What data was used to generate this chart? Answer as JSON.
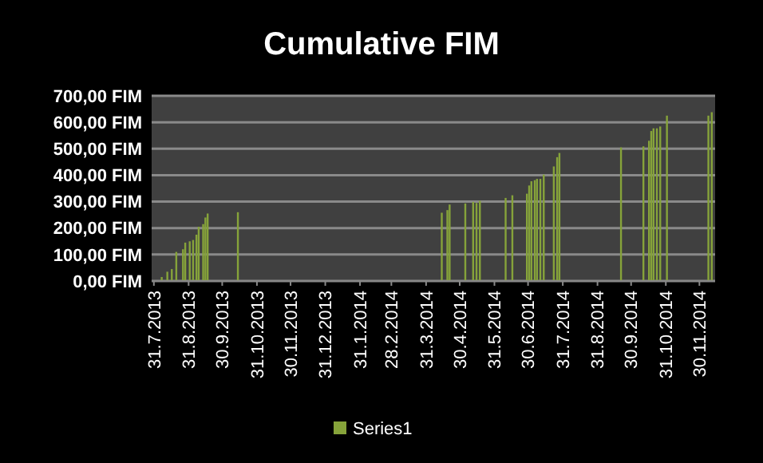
{
  "chart_data": {
    "type": "bar",
    "title": "Cumulative FIM",
    "x": [
      "2013-08-07",
      "2013-08-12",
      "2013-08-16",
      "2013-08-20",
      "2013-08-26",
      "2013-08-28",
      "2013-09-01",
      "2013-09-04",
      "2013-09-07",
      "2013-09-09",
      "2013-09-13",
      "2013-09-15",
      "2013-09-17",
      "2013-10-14",
      "2014-04-14",
      "2014-04-19",
      "2014-04-21",
      "2014-05-05",
      "2014-05-12",
      "2014-05-15",
      "2014-05-18",
      "2014-06-10",
      "2014-06-16",
      "2014-06-29",
      "2014-07-01",
      "2014-07-03",
      "2014-07-06",
      "2014-07-08",
      "2014-07-11",
      "2014-07-14",
      "2014-07-23",
      "2014-07-26",
      "2014-07-28",
      "2014-09-21",
      "2014-10-11",
      "2014-10-16",
      "2014-10-18",
      "2014-10-20",
      "2014-10-23",
      "2014-10-26",
      "2014-11-01",
      "2014-12-08",
      "2014-12-11"
    ],
    "series": [
      {
        "name": "Series1",
        "color": "#86a33a",
        "values": [
          15,
          35,
          45,
          110,
          120,
          145,
          150,
          155,
          175,
          205,
          215,
          240,
          255,
          260,
          258,
          268,
          289,
          293,
          299,
          295,
          303,
          314,
          324,
          330,
          361,
          377,
          381,
          386,
          386,
          402,
          433,
          468,
          484,
          505,
          509,
          530,
          567,
          577,
          577,
          584,
          625,
          625,
          638
        ]
      }
    ],
    "xlim": [
      "2013-07-29",
      "2014-12-14"
    ],
    "xticks": [
      {
        "value": "2013-07-31",
        "label": "31.7.2013"
      },
      {
        "value": "2013-08-31",
        "label": "31.8.2013"
      },
      {
        "value": "2013-09-30",
        "label": "30.9.2013"
      },
      {
        "value": "2013-10-31",
        "label": "31.10.2013"
      },
      {
        "value": "2013-11-30",
        "label": "30.11.2013"
      },
      {
        "value": "2013-12-31",
        "label": "31.12.2013"
      },
      {
        "value": "2014-01-31",
        "label": "31.1.2014"
      },
      {
        "value": "2014-02-28",
        "label": "28.2.2014"
      },
      {
        "value": "2014-03-31",
        "label": "31.3.2014"
      },
      {
        "value": "2014-04-30",
        "label": "30.4.2014"
      },
      {
        "value": "2014-05-31",
        "label": "31.5.2014"
      },
      {
        "value": "2014-06-30",
        "label": "30.6.2014"
      },
      {
        "value": "2014-07-31",
        "label": "31.7.2014"
      },
      {
        "value": "2014-08-31",
        "label": "31.8.2014"
      },
      {
        "value": "2014-09-30",
        "label": "30.9.2014"
      },
      {
        "value": "2014-10-31",
        "label": "31.10.2014"
      },
      {
        "value": "2014-11-30",
        "label": "30.11.2014"
      }
    ],
    "ylim": [
      0,
      700
    ],
    "yticks": [
      {
        "value": 0,
        "label": "0,00 FIM"
      },
      {
        "value": 100,
        "label": "100,00 FIM"
      },
      {
        "value": 200,
        "label": "200,00 FIM"
      },
      {
        "value": 300,
        "label": "300,00 FIM"
      },
      {
        "value": 400,
        "label": "400,00 FIM"
      },
      {
        "value": 500,
        "label": "500,00 FIM"
      },
      {
        "value": 600,
        "label": "600,00 FIM"
      },
      {
        "value": 700,
        "label": "700,00 FIM"
      }
    ],
    "grid": "y",
    "legend": "bottom"
  }
}
